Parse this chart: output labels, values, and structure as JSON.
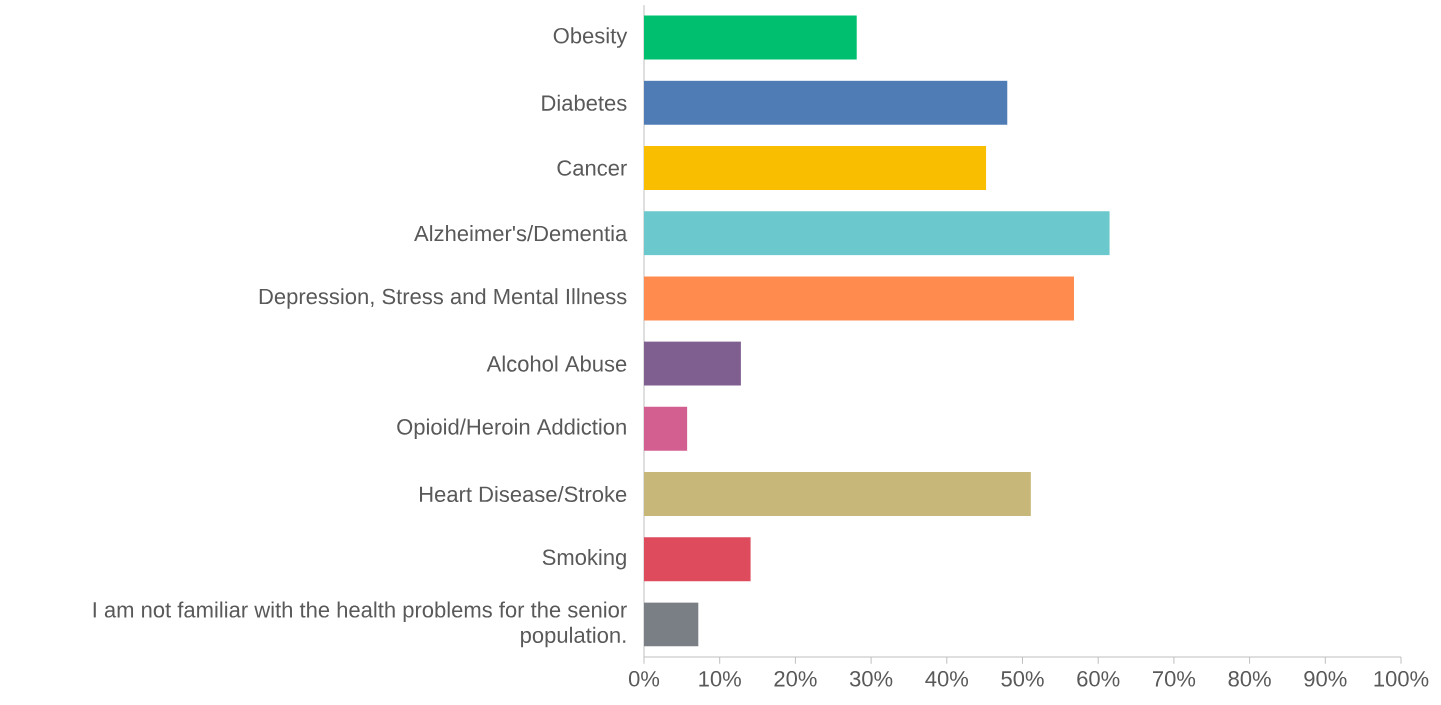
{
  "chart_data": {
    "type": "bar",
    "orientation": "horizontal",
    "categories": [
      "Obesity",
      "Diabetes",
      "Cancer",
      "Alzheimer's/Dementia",
      "Depression, Stress and Mental Illness",
      "Alcohol Abuse",
      "Opioid/Heroin Addiction",
      "Heart Disease/Stroke",
      "Smoking",
      "I am not familiar with the health problems for the senior population."
    ],
    "values": [
      28.1,
      48,
      45.2,
      61.5,
      56.8,
      12.8,
      5.7,
      51.1,
      14.1,
      7.2
    ],
    "colors": [
      "#00bf6f",
      "#507cb6",
      "#f9be00",
      "#6bc8cd",
      "#ff8b4f",
      "#7f5f90",
      "#d25f90",
      "#c7b879",
      "#dd4b5c",
      "#7a7f85"
    ],
    "xlim": [
      0,
      100
    ],
    "xticks": [
      {
        "value": 0,
        "label": "0%"
      },
      {
        "value": 10,
        "label": "10%"
      },
      {
        "value": 20,
        "label": "20%"
      },
      {
        "value": 30,
        "label": "30%"
      },
      {
        "value": 40,
        "label": "40%"
      },
      {
        "value": 50,
        "label": "50%"
      },
      {
        "value": 60,
        "label": "60%"
      },
      {
        "value": 70,
        "label": "70%"
      },
      {
        "value": 80,
        "label": "80%"
      },
      {
        "value": 90,
        "label": "90%"
      },
      {
        "value": 100,
        "label": "100%"
      }
    ]
  }
}
